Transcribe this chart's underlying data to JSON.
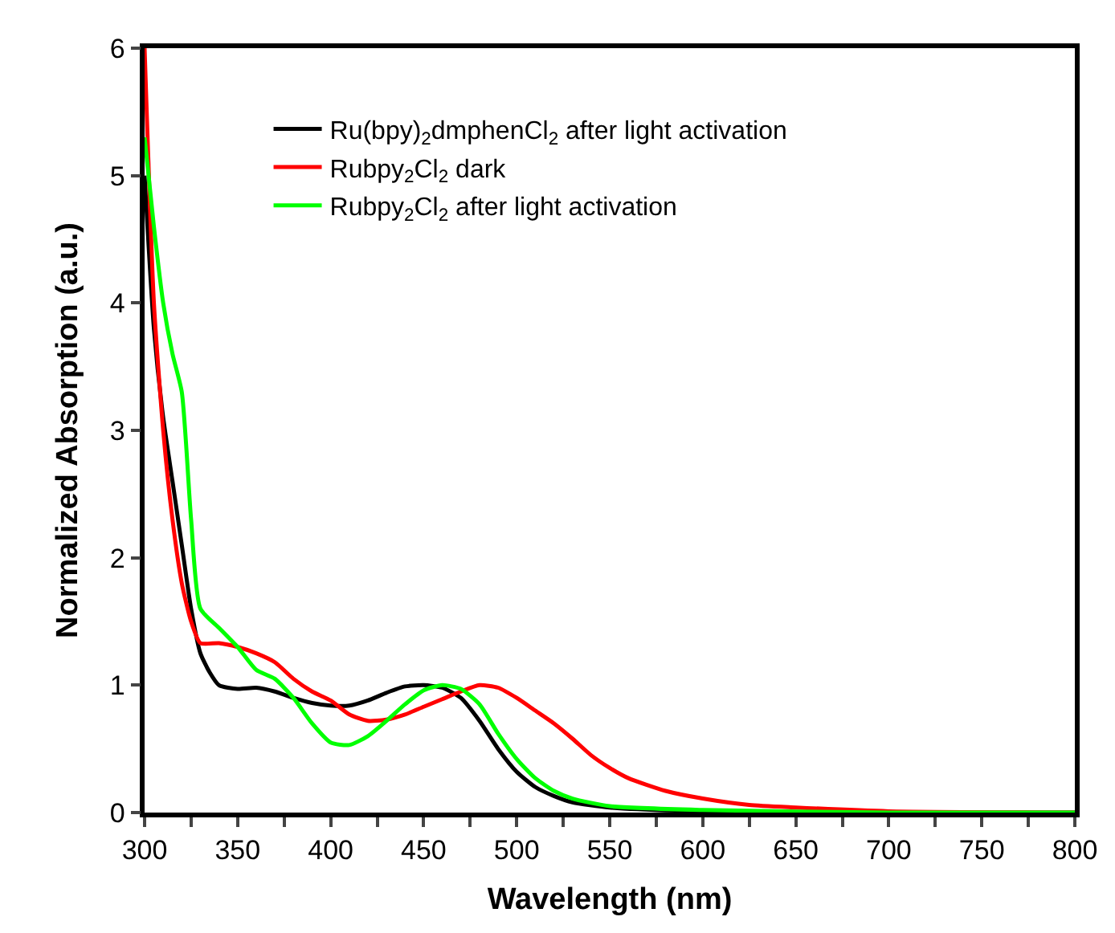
{
  "chart_data": {
    "type": "line",
    "xlabel": "Wavelength (nm)",
    "ylabel": "Normalized Absorption (a.u.)",
    "xlim": [
      300,
      800
    ],
    "ylim": [
      0,
      6
    ],
    "xticks": [
      300,
      {
        "value": 325,
        "label": null
      },
      350,
      {
        "value": 375,
        "label": null
      },
      400,
      {
        "value": 425,
        "label": null
      },
      450,
      {
        "value": 475,
        "label": null
      },
      500,
      {
        "value": 525,
        "label": null
      },
      550,
      {
        "value": 575,
        "label": null
      },
      600,
      {
        "value": 625,
        "label": null
      },
      650,
      {
        "value": 675,
        "label": null
      },
      700,
      {
        "value": 725,
        "label": null
      },
      750,
      {
        "value": 775,
        "label": null
      },
      800
    ],
    "yticks": [
      0,
      1,
      2,
      3,
      4,
      5,
      6
    ],
    "legend": "top",
    "series": [
      {
        "name": "Ru(bpy)$_{2}$dmphenCl$_{2}$ after light activation",
        "color": "#000000",
        "x": [
          300,
          305,
          310,
          315,
          320,
          325,
          330,
          335,
          340,
          350,
          360,
          370,
          380,
          390,
          400,
          410,
          420,
          430,
          440,
          450,
          460,
          470,
          480,
          490,
          500,
          510,
          520,
          530,
          550,
          600,
          700,
          800
        ],
        "values": [
          5.0,
          3.8,
          3.1,
          2.6,
          2.1,
          1.6,
          1.25,
          1.1,
          1.0,
          0.97,
          0.98,
          0.95,
          0.9,
          0.86,
          0.84,
          0.84,
          0.88,
          0.94,
          0.99,
          1.0,
          0.98,
          0.9,
          0.72,
          0.5,
          0.32,
          0.2,
          0.13,
          0.08,
          0.04,
          0.01,
          0.0,
          0
        ]
      },
      {
        "name": "Rubpy$_{2}$Cl$_{2}$ dark",
        "color": "#ff0000",
        "x": [
          300,
          305,
          310,
          315,
          320,
          325,
          330,
          340,
          350,
          360,
          370,
          380,
          390,
          400,
          410,
          420,
          430,
          440,
          450,
          460,
          470,
          480,
          490,
          500,
          510,
          520,
          530,
          540,
          550,
          560,
          580,
          600,
          625,
          650,
          700,
          800
        ],
        "values": [
          6.0,
          4.0,
          3.0,
          2.3,
          1.8,
          1.5,
          1.33,
          1.33,
          1.3,
          1.25,
          1.18,
          1.05,
          0.95,
          0.88,
          0.77,
          0.72,
          0.73,
          0.77,
          0.83,
          0.89,
          0.95,
          1.0,
          0.98,
          0.9,
          0.8,
          0.7,
          0.58,
          0.45,
          0.35,
          0.27,
          0.17,
          0.11,
          0.06,
          0.04,
          0.01,
          0
        ]
      },
      {
        "name": "Rubpy$_{2}$Cl$_{2}$ after light activation",
        "color": "#00ff00",
        "x": [
          300,
          305,
          310,
          315,
          320,
          325,
          330,
          340,
          350,
          360,
          370,
          380,
          390,
          400,
          410,
          420,
          430,
          440,
          450,
          460,
          470,
          480,
          490,
          500,
          510,
          520,
          530,
          550,
          600,
          700,
          800
        ],
        "values": [
          5.3,
          4.6,
          4.0,
          3.6,
          3.3,
          2.3,
          1.6,
          1.45,
          1.3,
          1.12,
          1.05,
          0.9,
          0.7,
          0.55,
          0.53,
          0.6,
          0.72,
          0.85,
          0.96,
          1.0,
          0.97,
          0.85,
          0.62,
          0.42,
          0.27,
          0.17,
          0.11,
          0.05,
          0.02,
          0.0,
          0
        ]
      }
    ]
  }
}
